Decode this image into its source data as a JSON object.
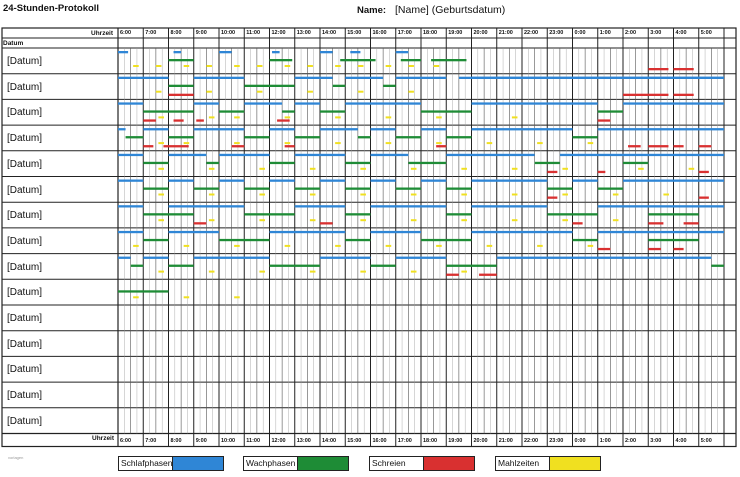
{
  "header": {
    "title": "24-Stunden-Protokoll",
    "name_label": "Name:",
    "name_value": "[Name] (Geburtsdatum)"
  },
  "table": {
    "time_col_label": "Uhrzeit",
    "date_col_label": "Datum",
    "hours": [
      "6:00",
      "7:00",
      "8:00",
      "9:00",
      "10:00",
      "11:00",
      "12:00",
      "13:00",
      "14:00",
      "15:00",
      "16:00",
      "17:00",
      "18:00",
      "19:00",
      "20:00",
      "21:00",
      "22:00",
      "23:00",
      "0:00",
      "1:00",
      "2:00",
      "3:00",
      "4:00",
      "5:00"
    ],
    "row_labels": [
      "[Datum]",
      "[Datum]",
      "[Datum]",
      "[Datum]",
      "[Datum]",
      "[Datum]",
      "[Datum]",
      "[Datum]",
      "[Datum]",
      "[Datum]",
      "[Datum]",
      "[Datum]",
      "[Datum]",
      "[Datum]",
      "[Datum]"
    ]
  },
  "legend": [
    {
      "label": "Schlafphasen",
      "color": "#2f86d6"
    },
    {
      "label": "Wachphasen",
      "color": "#1e8c36"
    },
    {
      "label": "Schreien",
      "color": "#d93030"
    },
    {
      "label": "Mahlzeiten",
      "color": "#f0e020"
    }
  ],
  "watermark": "vorlagen",
  "colors": {
    "sleep": "#2f86d6",
    "awake": "#1e8c36",
    "cry": "#d93030",
    "meal": "#f0e020",
    "grid": "#222222"
  },
  "entries": [
    {
      "row": 0,
      "segs": [
        {
          "t": "sleep",
          "s": 6.0,
          "e": 6.4
        },
        {
          "t": "sleep",
          "s": 8.2,
          "e": 8.5
        },
        {
          "t": "sleep",
          "s": 10.0,
          "e": 10.5
        },
        {
          "t": "sleep",
          "s": 12.1,
          "e": 12.4
        },
        {
          "t": "sleep",
          "s": 14.0,
          "e": 14.5
        },
        {
          "t": "sleep",
          "s": 15.2,
          "e": 15.6
        },
        {
          "t": "sleep",
          "s": 17.0,
          "e": 17.5
        },
        {
          "t": "awake",
          "s": 8.0,
          "e": 9.0
        },
        {
          "t": "awake",
          "s": 12.0,
          "e": 12.9
        },
        {
          "t": "awake",
          "s": 14.8,
          "e": 16.2
        },
        {
          "t": "awake",
          "s": 17.2,
          "e": 18.0
        },
        {
          "t": "awake",
          "s": 18.4,
          "e": 19.8
        },
        {
          "t": "sleep",
          "s": 20.0,
          "e": 30.0,
          "row": 1
        },
        {
          "t": "cry",
          "s": 27.0,
          "e": 27.8
        },
        {
          "t": "cry",
          "s": 28.0,
          "e": 28.8
        },
        {
          "t": "meal",
          "m": [
            6.6,
            7.5,
            8.6,
            9.5,
            10.6,
            11.5,
            12.6,
            13.5,
            14.6,
            15.5,
            16.6,
            17.5,
            18.5
          ]
        }
      ]
    },
    {
      "row": 1,
      "segs": [
        {
          "t": "sleep",
          "s": 6.0,
          "e": 8.0
        },
        {
          "t": "sleep",
          "s": 9.0,
          "e": 11.0
        },
        {
          "t": "sleep",
          "s": 13.0,
          "e": 14.5
        },
        {
          "t": "sleep",
          "s": 15.0,
          "e": 16.5
        },
        {
          "t": "sleep",
          "s": 17.0,
          "e": 19.0
        },
        {
          "t": "sleep",
          "s": 19.5,
          "e": 30.0
        },
        {
          "t": "awake",
          "s": 8.0,
          "e": 9.0
        },
        {
          "t": "awake",
          "s": 11.0,
          "e": 13.0
        },
        {
          "t": "awake",
          "s": 14.5,
          "e": 15.0
        },
        {
          "t": "awake",
          "s": 16.5,
          "e": 17.0
        },
        {
          "t": "cry",
          "s": 8.0,
          "e": 9.0
        },
        {
          "t": "cry",
          "s": 26.0,
          "e": 27.8
        },
        {
          "t": "cry",
          "s": 28.0,
          "e": 28.8
        },
        {
          "t": "meal",
          "m": [
            7.5,
            9.5,
            11.5,
            13.5,
            15.5,
            17.5
          ]
        }
      ]
    },
    {
      "row": 2,
      "segs": [
        {
          "t": "sleep",
          "s": 6.0,
          "e": 7.0
        },
        {
          "t": "sleep",
          "s": 9.0,
          "e": 10.0
        },
        {
          "t": "sleep",
          "s": 11.0,
          "e": 12.5
        },
        {
          "t": "sleep",
          "s": 13.0,
          "e": 14.0
        },
        {
          "t": "sleep",
          "s": 15.0,
          "e": 18.0
        },
        {
          "t": "sleep",
          "s": 20.0,
          "e": 25.0
        },
        {
          "t": "sleep",
          "s": 26.0,
          "e": 30.0
        },
        {
          "t": "awake",
          "s": 7.0,
          "e": 9.0
        },
        {
          "t": "awake",
          "s": 10.0,
          "e": 11.0
        },
        {
          "t": "awake",
          "s": 12.5,
          "e": 13.0
        },
        {
          "t": "awake",
          "s": 14.0,
          "e": 15.0
        },
        {
          "t": "awake",
          "s": 18.0,
          "e": 20.0
        },
        {
          "t": "awake",
          "s": 25.0,
          "e": 26.0
        },
        {
          "t": "cry",
          "s": 7.0,
          "e": 7.5
        },
        {
          "t": "cry",
          "s": 8.2,
          "e": 8.6
        },
        {
          "t": "cry",
          "s": 9.1,
          "e": 9.4
        },
        {
          "t": "cry",
          "s": 12.3,
          "e": 12.8
        },
        {
          "t": "cry",
          "s": 25.0,
          "e": 25.5
        },
        {
          "t": "meal",
          "m": [
            7.6,
            9.6,
            10.6,
            12.6,
            14.6,
            16.6,
            18.6,
            21.6
          ]
        }
      ]
    },
    {
      "row": 3,
      "segs": [
        {
          "t": "sleep",
          "s": 6.0,
          "e": 6.3
        },
        {
          "t": "sleep",
          "s": 7.0,
          "e": 8.0
        },
        {
          "t": "sleep",
          "s": 9.0,
          "e": 11.0
        },
        {
          "t": "sleep",
          "s": 12.0,
          "e": 13.0
        },
        {
          "t": "sleep",
          "s": 14.0,
          "e": 15.5
        },
        {
          "t": "sleep",
          "s": 16.0,
          "e": 17.0
        },
        {
          "t": "sleep",
          "s": 18.0,
          "e": 19.0
        },
        {
          "t": "sleep",
          "s": 20.0,
          "e": 24.0
        },
        {
          "t": "sleep",
          "s": 25.0,
          "e": 30.0
        },
        {
          "t": "awake",
          "s": 6.3,
          "e": 7.0
        },
        {
          "t": "awake",
          "s": 8.0,
          "e": 9.0
        },
        {
          "t": "awake",
          "s": 11.0,
          "e": 12.0
        },
        {
          "t": "awake",
          "s": 13.0,
          "e": 14.0
        },
        {
          "t": "awake",
          "s": 15.5,
          "e": 16.0
        },
        {
          "t": "awake",
          "s": 17.0,
          "e": 18.0
        },
        {
          "t": "awake",
          "s": 19.0,
          "e": 20.0
        },
        {
          "t": "awake",
          "s": 24.0,
          "e": 25.0
        },
        {
          "t": "cry",
          "s": 7.0,
          "e": 7.4
        },
        {
          "t": "cry",
          "s": 7.8,
          "e": 8.8
        },
        {
          "t": "cry",
          "s": 10.5,
          "e": 11.0
        },
        {
          "t": "cry",
          "s": 12.6,
          "e": 13.0
        },
        {
          "t": "cry",
          "s": 18.6,
          "e": 19.0
        },
        {
          "t": "cry",
          "s": 26.2,
          "e": 26.7
        },
        {
          "t": "cry",
          "s": 27.0,
          "e": 27.8
        },
        {
          "t": "cry",
          "s": 28.0,
          "e": 28.4
        },
        {
          "t": "cry",
          "s": 29.0,
          "e": 29.5
        },
        {
          "t": "meal",
          "m": [
            7.6,
            8.6,
            10.6,
            12.6,
            14.6,
            16.6,
            18.6,
            20.6,
            22.6,
            24.6
          ]
        }
      ]
    },
    {
      "row": 4,
      "segs": [
        {
          "t": "sleep",
          "s": 6.0,
          "e": 7.0
        },
        {
          "t": "sleep",
          "s": 8.0,
          "e": 9.5
        },
        {
          "t": "sleep",
          "s": 10.0,
          "e": 12.0
        },
        {
          "t": "sleep",
          "s": 13.0,
          "e": 15.0
        },
        {
          "t": "sleep",
          "s": 16.0,
          "e": 17.5
        },
        {
          "t": "sleep",
          "s": 19.0,
          "e": 22.5
        },
        {
          "t": "sleep",
          "s": 23.5,
          "e": 30.0
        },
        {
          "t": "awake",
          "s": 7.0,
          "e": 8.0
        },
        {
          "t": "awake",
          "s": 9.5,
          "e": 10.0
        },
        {
          "t": "awake",
          "s": 12.0,
          "e": 13.0
        },
        {
          "t": "awake",
          "s": 15.0,
          "e": 16.0
        },
        {
          "t": "awake",
          "s": 17.5,
          "e": 19.0
        },
        {
          "t": "awake",
          "s": 22.5,
          "e": 23.5
        },
        {
          "t": "awake",
          "s": 26.0,
          "e": 27.0
        },
        {
          "t": "cry",
          "s": 23.0,
          "e": 23.4
        },
        {
          "t": "cry",
          "s": 25.0,
          "e": 25.3
        },
        {
          "t": "cry",
          "s": 29.0,
          "e": 29.4
        },
        {
          "t": "meal",
          "m": [
            7.6,
            9.6,
            11.6,
            13.6,
            15.6,
            17.6,
            19.6,
            21.6,
            23.6,
            26.6,
            28.6
          ]
        }
      ]
    },
    {
      "row": 5,
      "segs": [
        {
          "t": "sleep",
          "s": 6.0,
          "e": 7.0
        },
        {
          "t": "sleep",
          "s": 8.0,
          "e": 9.0
        },
        {
          "t": "sleep",
          "s": 10.0,
          "e": 11.0
        },
        {
          "t": "sleep",
          "s": 12.0,
          "e": 13.0
        },
        {
          "t": "sleep",
          "s": 14.0,
          "e": 15.0
        },
        {
          "t": "sleep",
          "s": 16.0,
          "e": 17.0
        },
        {
          "t": "sleep",
          "s": 18.0,
          "e": 19.0
        },
        {
          "t": "sleep",
          "s": 20.0,
          "e": 23.0
        },
        {
          "t": "sleep",
          "s": 24.0,
          "e": 25.0
        },
        {
          "t": "sleep",
          "s": 26.0,
          "e": 30.0
        },
        {
          "t": "awake",
          "s": 7.0,
          "e": 8.0
        },
        {
          "t": "awake",
          "s": 9.0,
          "e": 10.0
        },
        {
          "t": "awake",
          "s": 11.0,
          "e": 12.0
        },
        {
          "t": "awake",
          "s": 13.0,
          "e": 14.0
        },
        {
          "t": "awake",
          "s": 15.0,
          "e": 16.0
        },
        {
          "t": "awake",
          "s": 17.0,
          "e": 18.0
        },
        {
          "t": "awake",
          "s": 19.0,
          "e": 20.0
        },
        {
          "t": "awake",
          "s": 23.0,
          "e": 24.0
        },
        {
          "t": "awake",
          "s": 25.0,
          "e": 26.0
        },
        {
          "t": "cry",
          "s": 23.0,
          "e": 23.4
        },
        {
          "t": "cry",
          "s": 29.0,
          "e": 29.4
        },
        {
          "t": "meal",
          "m": [
            7.6,
            9.6,
            11.6,
            13.6,
            15.6,
            17.6,
            19.6,
            21.6,
            23.6,
            25.6,
            27.6
          ]
        }
      ]
    },
    {
      "row": 6,
      "segs": [
        {
          "t": "sleep",
          "s": 6.0,
          "e": 7.0
        },
        {
          "t": "sleep",
          "s": 8.0,
          "e": 11.0
        },
        {
          "t": "sleep",
          "s": 13.0,
          "e": 15.0
        },
        {
          "t": "sleep",
          "s": 16.0,
          "e": 19.0
        },
        {
          "t": "sleep",
          "s": 20.0,
          "e": 23.0
        },
        {
          "t": "sleep",
          "s": 25.0,
          "e": 30.0
        },
        {
          "t": "awake",
          "s": 7.0,
          "e": 9.0
        },
        {
          "t": "awake",
          "s": 11.0,
          "e": 13.0
        },
        {
          "t": "awake",
          "s": 15.0,
          "e": 16.0
        },
        {
          "t": "awake",
          "s": 19.0,
          "e": 20.0
        },
        {
          "t": "awake",
          "s": 23.0,
          "e": 25.0
        },
        {
          "t": "awake",
          "s": 27.0,
          "e": 29.0
        },
        {
          "t": "cry",
          "s": 9.0,
          "e": 9.5
        },
        {
          "t": "cry",
          "s": 14.0,
          "e": 14.5
        },
        {
          "t": "cry",
          "s": 24.0,
          "e": 24.4
        },
        {
          "t": "cry",
          "s": 27.0,
          "e": 27.6
        },
        {
          "t": "cry",
          "s": 28.4,
          "e": 29.0
        },
        {
          "t": "meal",
          "m": [
            7.6,
            9.6,
            11.6,
            13.6,
            15.6,
            17.6,
            19.6,
            21.6,
            23.6,
            25.6
          ]
        }
      ]
    },
    {
      "row": 7,
      "segs": [
        {
          "t": "sleep",
          "s": 6.0,
          "e": 7.0
        },
        {
          "t": "sleep",
          "s": 8.0,
          "e": 10.0
        },
        {
          "t": "sleep",
          "s": 12.0,
          "e": 15.0
        },
        {
          "t": "sleep",
          "s": 16.0,
          "e": 18.0
        },
        {
          "t": "sleep",
          "s": 20.0,
          "e": 24.0
        },
        {
          "t": "sleep",
          "s": 25.0,
          "e": 30.0
        },
        {
          "t": "awake",
          "s": 7.0,
          "e": 8.0
        },
        {
          "t": "awake",
          "s": 10.0,
          "e": 12.0
        },
        {
          "t": "awake",
          "s": 15.0,
          "e": 16.0
        },
        {
          "t": "awake",
          "s": 18.0,
          "e": 20.0
        },
        {
          "t": "awake",
          "s": 24.0,
          "e": 25.0
        },
        {
          "t": "awake",
          "s": 27.0,
          "e": 29.0
        },
        {
          "t": "cry",
          "s": 25.0,
          "e": 25.5
        },
        {
          "t": "cry",
          "s": 27.0,
          "e": 27.5
        },
        {
          "t": "cry",
          "s": 28.0,
          "e": 28.4
        },
        {
          "t": "meal",
          "m": [
            6.6,
            8.6,
            10.6,
            12.6,
            14.6,
            16.6,
            18.6,
            20.6,
            22.6,
            24.6
          ]
        }
      ]
    },
    {
      "row": 8,
      "segs": [
        {
          "t": "sleep",
          "s": 6.0,
          "e": 6.5
        },
        {
          "t": "sleep",
          "s": 7.0,
          "e": 8.0
        },
        {
          "t": "sleep",
          "s": 9.0,
          "e": 12.0
        },
        {
          "t": "sleep",
          "s": 14.0,
          "e": 16.0
        },
        {
          "t": "sleep",
          "s": 17.0,
          "e": 19.0
        },
        {
          "t": "sleep",
          "s": 21.0,
          "e": 29.5
        },
        {
          "t": "awake",
          "s": 6.5,
          "e": 7.0
        },
        {
          "t": "awake",
          "s": 8.0,
          "e": 9.0
        },
        {
          "t": "awake",
          "s": 12.0,
          "e": 14.0
        },
        {
          "t": "awake",
          "s": 16.0,
          "e": 17.0
        },
        {
          "t": "awake",
          "s": 19.0,
          "e": 21.0
        },
        {
          "t": "awake",
          "s": 29.5,
          "e": 30.0
        },
        {
          "t": "cry",
          "s": 19.0,
          "e": 19.5
        },
        {
          "t": "cry",
          "s": 20.3,
          "e": 21.0
        },
        {
          "t": "meal",
          "m": [
            7.6,
            9.6,
            11.6,
            13.6,
            15.6,
            17.6,
            19.6
          ]
        }
      ]
    },
    {
      "row": 9,
      "segs": [
        {
          "t": "awake",
          "s": 6.0,
          "e": 8.0
        },
        {
          "t": "meal",
          "m": [
            6.6,
            8.6,
            10.6
          ]
        }
      ]
    }
  ]
}
